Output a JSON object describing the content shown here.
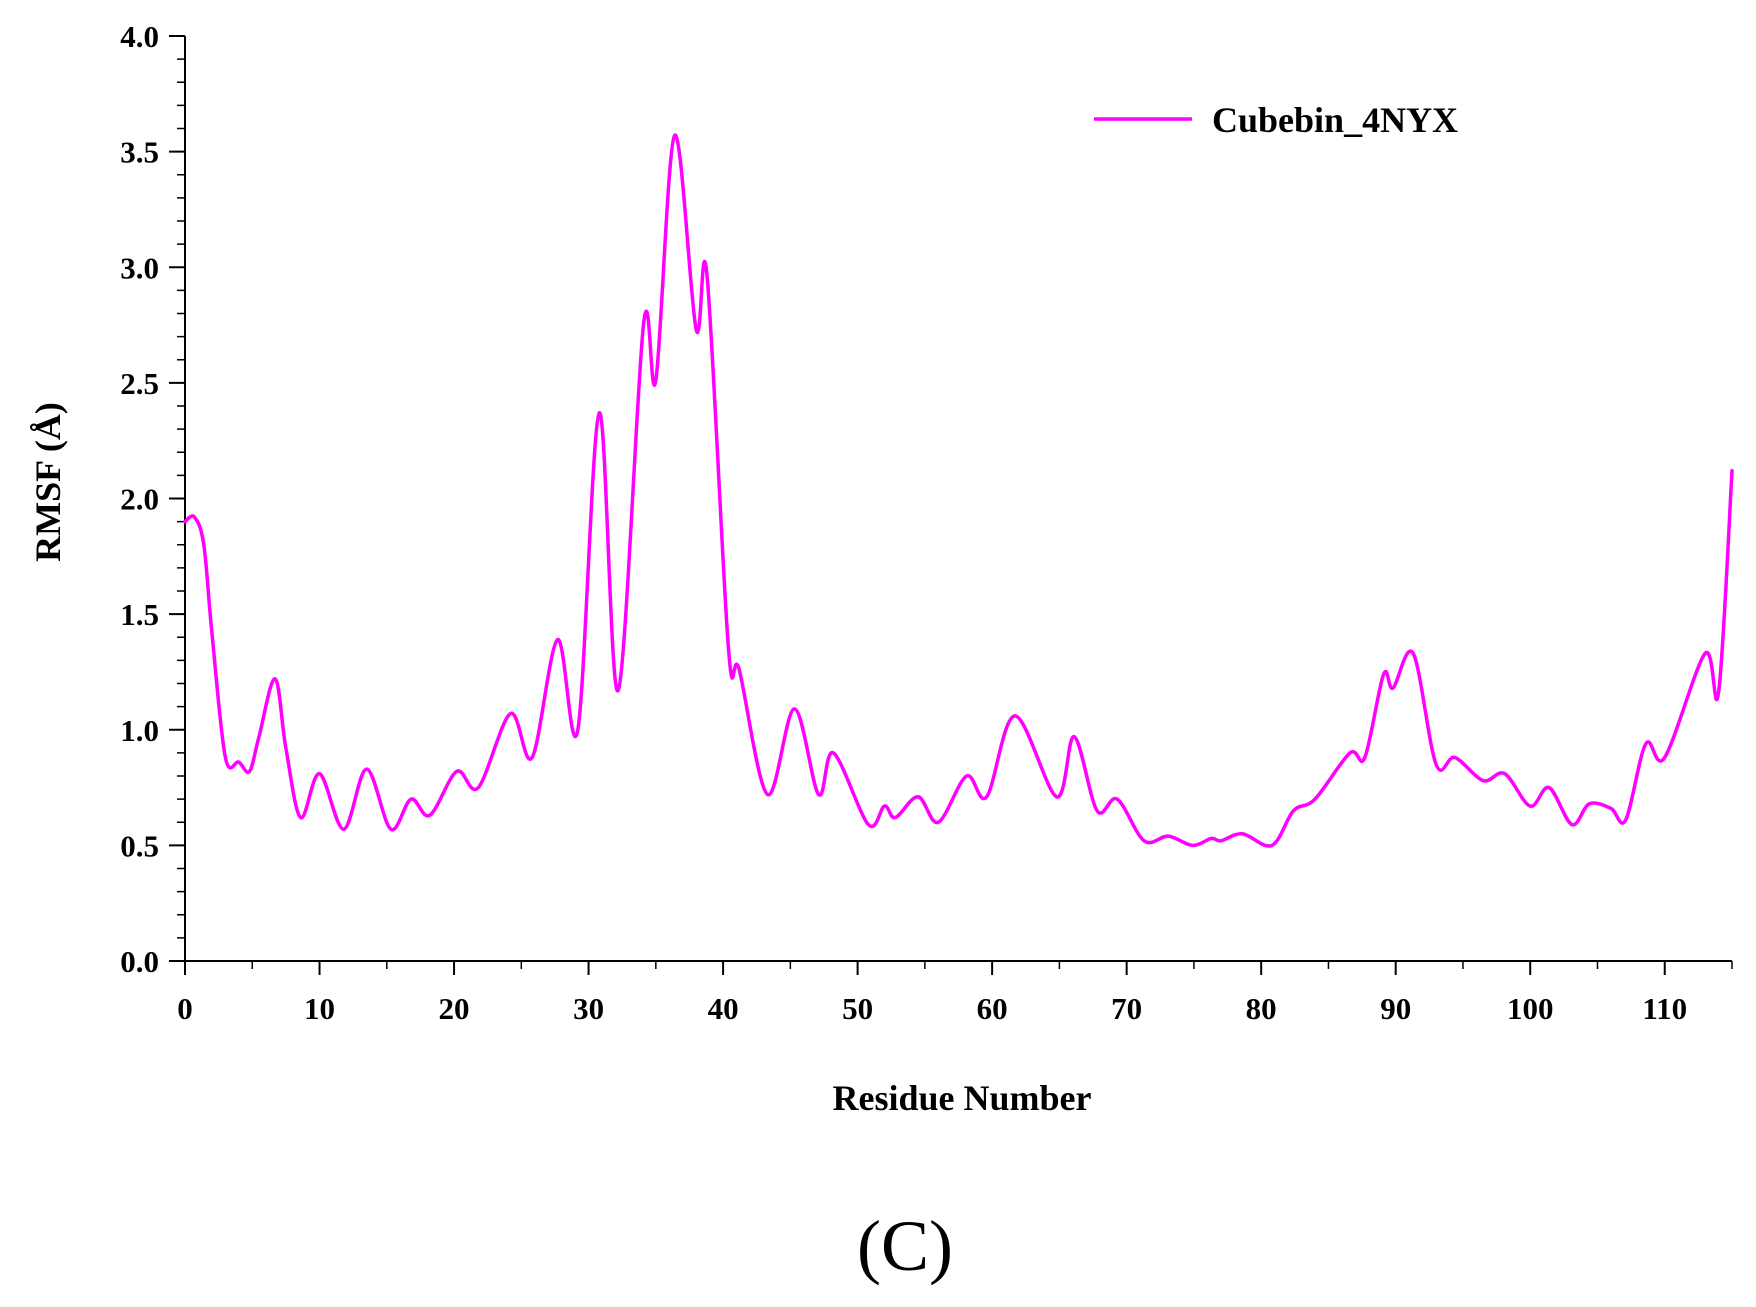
{
  "chart_data": {
    "type": "line",
    "panel_label": "(C)",
    "xlabel": "Residue Number",
    "ylabel": "RMSF (Å)",
    "xlim": [
      0,
      115
    ],
    "ylim": [
      0,
      4.0
    ],
    "x_ticks": [
      0,
      10,
      20,
      30,
      40,
      50,
      60,
      70,
      80,
      90,
      100,
      110
    ],
    "x_tick_labels": [
      "0",
      "10",
      "20",
      "30",
      "40",
      "50",
      "60",
      "70",
      "80",
      "90",
      "100",
      "110"
    ],
    "y_ticks": [
      0,
      0.5,
      1.0,
      1.5,
      2.0,
      2.5,
      3.0,
      3.5,
      4.0
    ],
    "y_tick_labels": [
      "0.0",
      "0.5",
      "1.0",
      "1.5",
      "2.0",
      "2.5",
      "3.0",
      "3.5",
      "4.0"
    ],
    "grid": false,
    "legend_position": "top-right",
    "colors": {
      "series": "#ff00ff",
      "axis": "#000000"
    },
    "series": [
      {
        "name": "Cubebin_4NYX",
        "x": [
          0,
          0.7,
          1.4,
          2,
          3,
          4,
          4.8,
          5.5,
          6.7,
          7.5,
          8.6,
          10,
          11.8,
          13.5,
          15.3,
          16.8,
          18.2,
          20.2,
          21.8,
          24.2,
          25.8,
          27.7,
          29.2,
          30.8,
          32.2,
          34.1,
          35,
          36.4,
          38,
          38.8,
          40.4,
          41.2,
          43.3,
          45.3,
          47.1,
          48.2,
          50.8,
          52,
          52.8,
          54.5,
          56,
          58.1,
          59.6,
          61.7,
          64.8,
          66.1,
          67.8,
          69.3,
          71.3,
          73.1,
          74.9,
          76.3,
          77,
          78.6,
          80.8,
          82.4,
          84,
          86.6,
          87.7,
          89.1,
          89.8,
          91.3,
          93,
          94.4,
          96.5,
          98.1,
          100,
          101.4,
          103.1,
          104.4,
          106,
          107.1,
          108.6,
          110,
          113,
          114,
          115
        ],
        "y": [
          1.9,
          1.92,
          1.8,
          1.42,
          0.88,
          0.86,
          0.82,
          0.97,
          1.22,
          0.92,
          0.62,
          0.81,
          0.57,
          0.83,
          0.57,
          0.7,
          0.63,
          0.82,
          0.75,
          1.07,
          0.88,
          1.39,
          1.0,
          2.37,
          1.17,
          2.76,
          2.51,
          3.57,
          2.73,
          2.97,
          1.35,
          1.26,
          0.72,
          1.09,
          0.72,
          0.9,
          0.59,
          0.67,
          0.62,
          0.71,
          0.6,
          0.8,
          0.71,
          1.06,
          0.71,
          0.97,
          0.65,
          0.7,
          0.52,
          0.54,
          0.5,
          0.53,
          0.52,
          0.55,
          0.5,
          0.65,
          0.7,
          0.9,
          0.88,
          1.24,
          1.18,
          1.33,
          0.85,
          0.88,
          0.78,
          0.81,
          0.67,
          0.75,
          0.59,
          0.68,
          0.66,
          0.61,
          0.94,
          0.88,
          1.33,
          1.16,
          2.12
        ]
      }
    ]
  }
}
